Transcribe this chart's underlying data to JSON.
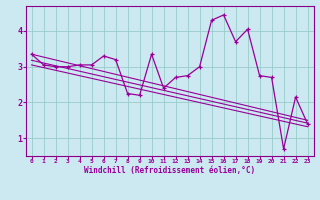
{
  "xlabel": "Windchill (Refroidissement éolien,°C)",
  "bg_color": "#cce8f0",
  "line_color": "#990099",
  "grid_color": "#99cccc",
  "axis_color": "#880088",
  "xlim": [
    -0.5,
    23.5
  ],
  "ylim": [
    0.5,
    4.7
  ],
  "yticks": [
    1,
    2,
    3,
    4
  ],
  "xticks": [
    0,
    1,
    2,
    3,
    4,
    5,
    6,
    7,
    8,
    9,
    10,
    11,
    12,
    13,
    14,
    15,
    16,
    17,
    18,
    19,
    20,
    21,
    22,
    23
  ],
  "series1_x": [
    0,
    1,
    2,
    3,
    4,
    5,
    6,
    7,
    8,
    9,
    10,
    11,
    12,
    13,
    14,
    15,
    16,
    17,
    18,
    19,
    20,
    21,
    22,
    23
  ],
  "series1_y": [
    3.35,
    3.05,
    3.0,
    3.0,
    3.05,
    3.05,
    3.3,
    3.2,
    2.25,
    2.2,
    3.35,
    2.4,
    2.7,
    2.75,
    3.0,
    4.3,
    4.45,
    3.7,
    4.05,
    2.75,
    2.7,
    0.7,
    2.15,
    1.4
  ],
  "trend1_x": [
    0,
    23
  ],
  "trend1_y": [
    3.35,
    1.5
  ],
  "trend2_x": [
    0,
    23
  ],
  "trend2_y": [
    3.18,
    1.42
  ],
  "trend3_x": [
    0,
    23
  ],
  "trend3_y": [
    3.05,
    1.32
  ]
}
